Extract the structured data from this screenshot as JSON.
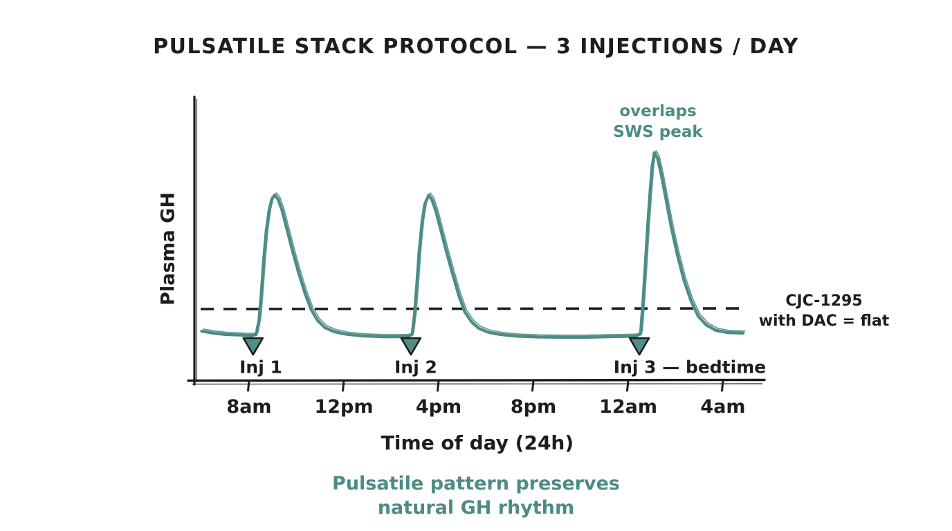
{
  "page": {
    "background": "#ffffff"
  },
  "chart_data": {
    "type": "line",
    "title": "PULSATILE STACK PROTOCOL — 3 INJECTIONS / DAY",
    "xlabel": "Time of day (24h)",
    "ylabel": "Plasma GH",
    "caption_lines": [
      "Pulsatile pattern preserves",
      "natural GH rhythm"
    ],
    "colors": {
      "ink": "#1d1d1d",
      "teal": "#4d8c85",
      "teal_text": "#4d8c85",
      "triangle_fill": "#528e87"
    },
    "x_axis": {
      "time_origin": "6am",
      "span_hours": 24,
      "ticks": [
        {
          "t": 2,
          "label": "8am"
        },
        {
          "t": 6,
          "label": "12pm"
        },
        {
          "t": 10,
          "label": "4pm"
        },
        {
          "t": 14,
          "label": "8pm"
        },
        {
          "t": 18,
          "label": "12am"
        },
        {
          "t": 22,
          "label": "4am"
        }
      ]
    },
    "y_axis": {
      "relative_scale": [
        0,
        1
      ],
      "grid": false
    },
    "reference_line": {
      "style": "dashed",
      "level": 0.2575,
      "label_lines": [
        "CJC-1295",
        "with DAC = flat"
      ]
    },
    "injections": [
      {
        "label": "Inj 1",
        "t": 2.17
      },
      {
        "label": "Inj 2",
        "t": 8.83
      },
      {
        "label": "Inj 3 — bedtime",
        "t": 18.47
      }
    ],
    "annotations": [
      {
        "lines": [
          "overlaps",
          "SWS peak"
        ],
        "t": 19.1
      }
    ],
    "series": [
      {
        "name": "Plasma GH (pulsatile, 3 injections/day)",
        "color": "#4d8c85",
        "points": [
          [
            0.0,
            0.18
          ],
          [
            0.5,
            0.173
          ],
          [
            1.0,
            0.168
          ],
          [
            1.6,
            0.166
          ],
          [
            2.1,
            0.164
          ],
          [
            2.3,
            0.168
          ],
          [
            2.42,
            0.22
          ],
          [
            2.52,
            0.32
          ],
          [
            2.62,
            0.44
          ],
          [
            2.72,
            0.54
          ],
          [
            2.84,
            0.615
          ],
          [
            2.96,
            0.658
          ],
          [
            3.08,
            0.672
          ],
          [
            3.22,
            0.658
          ],
          [
            3.38,
            0.62
          ],
          [
            3.58,
            0.555
          ],
          [
            3.82,
            0.475
          ],
          [
            4.08,
            0.395
          ],
          [
            4.35,
            0.32
          ],
          [
            4.62,
            0.258
          ],
          [
            4.9,
            0.218
          ],
          [
            5.2,
            0.193
          ],
          [
            5.6,
            0.178
          ],
          [
            6.1,
            0.169
          ],
          [
            6.8,
            0.163
          ],
          [
            7.6,
            0.16
          ],
          [
            8.3,
            0.16
          ],
          [
            8.68,
            0.161
          ],
          [
            8.88,
            0.168
          ],
          [
            8.98,
            0.24
          ],
          [
            9.08,
            0.35
          ],
          [
            9.18,
            0.47
          ],
          [
            9.3,
            0.575
          ],
          [
            9.42,
            0.64
          ],
          [
            9.58,
            0.672
          ],
          [
            9.72,
            0.655
          ],
          [
            9.88,
            0.615
          ],
          [
            10.08,
            0.55
          ],
          [
            10.32,
            0.47
          ],
          [
            10.58,
            0.39
          ],
          [
            10.85,
            0.31
          ],
          [
            11.1,
            0.25
          ],
          [
            11.4,
            0.212
          ],
          [
            11.7,
            0.19
          ],
          [
            12.1,
            0.176
          ],
          [
            12.6,
            0.168
          ],
          [
            13.3,
            0.162
          ],
          [
            14.2,
            0.159
          ],
          [
            15.2,
            0.158
          ],
          [
            16.2,
            0.158
          ],
          [
            17.2,
            0.16
          ],
          [
            17.9,
            0.161
          ],
          [
            18.3,
            0.162
          ],
          [
            18.52,
            0.17
          ],
          [
            18.62,
            0.28
          ],
          [
            18.72,
            0.42
          ],
          [
            18.82,
            0.56
          ],
          [
            18.92,
            0.68
          ],
          [
            19.0,
            0.77
          ],
          [
            19.1,
            0.825
          ],
          [
            19.24,
            0.805
          ],
          [
            19.4,
            0.745
          ],
          [
            19.6,
            0.655
          ],
          [
            19.82,
            0.555
          ],
          [
            20.08,
            0.455
          ],
          [
            20.35,
            0.365
          ],
          [
            20.65,
            0.29
          ],
          [
            20.95,
            0.235
          ],
          [
            21.3,
            0.202
          ],
          [
            21.7,
            0.183
          ],
          [
            22.2,
            0.175
          ],
          [
            22.85,
            0.173
          ]
        ]
      }
    ]
  }
}
